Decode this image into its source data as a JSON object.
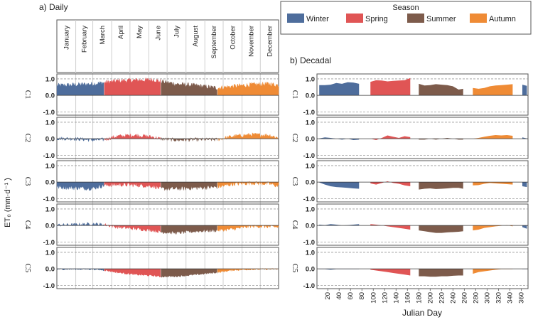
{
  "figure": {
    "ylabel": "ET₀ (mm·d⁻¹ )",
    "legend": {
      "title": "Season",
      "placement": "top-right",
      "items": [
        {
          "name": "Winter",
          "color": "#4e6d9c"
        },
        {
          "name": "Spring",
          "color": "#e05555"
        },
        {
          "name": "Summer",
          "color": "#7d5b4b"
        },
        {
          "name": "Autumn",
          "color": "#ef8b35"
        }
      ]
    }
  },
  "chart_data": [
    {
      "type": "area",
      "title": "a)  Daily",
      "months": [
        "January",
        "February",
        "March",
        "April",
        "May",
        "June",
        "July",
        "August",
        "September",
        "October",
        "November",
        "December"
      ],
      "rows": [
        "C1",
        "C2",
        "C3",
        "C4",
        "C5"
      ],
      "ytick_labels": [
        "1.0",
        "0.0",
        "-1.0"
      ],
      "yticks": [
        1.0,
        0.0,
        -1.0
      ],
      "ylim": [
        -1.2,
        1.3
      ],
      "xlim": [
        1,
        365
      ],
      "season_ranges": {
        "Winter": [
          1,
          78
        ],
        "Spring": [
          79,
          171
        ],
        "Summer": [
          172,
          264
        ],
        "Autumn": [
          265,
          365
        ]
      },
      "profiles_day": [
        1,
        30,
        60,
        79,
        100,
        130,
        160,
        171,
        200,
        230,
        264,
        290,
        320,
        350,
        365
      ],
      "profiles": {
        "C1": [
          0.6,
          0.65,
          0.7,
          0.78,
          0.88,
          0.92,
          0.95,
          0.85,
          0.68,
          0.6,
          0.45,
          0.55,
          0.65,
          0.7,
          0.62
        ],
        "C2": [
          0.02,
          0.0,
          -0.08,
          -0.05,
          0.15,
          0.22,
          0.1,
          0.0,
          -0.08,
          -0.05,
          -0.05,
          0.15,
          0.25,
          0.22,
          0.05
        ],
        "C3": [
          -0.3,
          -0.35,
          -0.38,
          -0.2,
          -0.15,
          -0.18,
          -0.25,
          -0.4,
          -0.4,
          -0.35,
          -0.3,
          -0.12,
          -0.05,
          -0.1,
          -0.25
        ],
        "C4": [
          0.02,
          0.05,
          0.1,
          0.05,
          -0.1,
          -0.2,
          -0.3,
          -0.4,
          -0.45,
          -0.35,
          -0.3,
          -0.22,
          -0.05,
          -0.08,
          -0.1
        ],
        "C5": [
          -0.02,
          -0.02,
          -0.02,
          -0.08,
          -0.22,
          -0.35,
          -0.42,
          -0.48,
          -0.45,
          -0.35,
          -0.22,
          -0.08,
          -0.03,
          -0.02,
          -0.02
        ]
      },
      "noise": {
        "C1": 0.14,
        "C2": 0.12,
        "C3": 0.13,
        "C4": 0.1,
        "C5": 0.05
      }
    },
    {
      "type": "bar",
      "title": "b)  Decadal",
      "xlabel": "Julian Day",
      "xtick_labels": [
        "20",
        "40",
        "60",
        "80",
        "100",
        "120",
        "140",
        "160",
        "180",
        "200",
        "220",
        "240",
        "260",
        "280",
        "300",
        "320",
        "340",
        "360"
      ],
      "xticks": [
        20,
        40,
        60,
        80,
        100,
        120,
        140,
        160,
        180,
        200,
        220,
        240,
        260,
        280,
        300,
        320,
        340,
        360
      ],
      "ytick_labels": [
        "1.0",
        "0.0",
        "-1.0"
      ],
      "yticks": [
        1.0,
        0.0,
        -1.0
      ],
      "ylim": [
        -1.2,
        1.3
      ],
      "xlim": [
        1,
        372
      ],
      "segments": [
        {
          "season": "Winter",
          "x": [
            5,
            15,
            25,
            35,
            45,
            55,
            65,
            75
          ]
        },
        {
          "season": "Spring",
          "x": [
            95,
            105,
            115,
            125,
            135,
            145,
            155,
            165
          ]
        },
        {
          "season": "Summer",
          "x": [
            180,
            190,
            200,
            210,
            220,
            230,
            240,
            250,
            258
          ]
        },
        {
          "season": "Autumn",
          "x": [
            275,
            285,
            295,
            305,
            315,
            325,
            335,
            345
          ]
        },
        {
          "season": "Winter",
          "x": [
            362,
            370
          ]
        }
      ],
      "rows": {
        "C1": [
          [
            0.62,
            0.62,
            0.65,
            0.75,
            0.7,
            0.8,
            0.78,
            0.7
          ],
          [
            0.82,
            0.92,
            0.9,
            0.85,
            0.88,
            0.9,
            0.92,
            1.05
          ],
          [
            0.7,
            0.6,
            0.62,
            0.68,
            0.65,
            0.62,
            0.55,
            0.35,
            0.4
          ],
          [
            0.45,
            0.4,
            0.45,
            0.55,
            0.6,
            0.62,
            0.65,
            0.68
          ],
          [
            0.65,
            0.58
          ]
        ],
        "C2": [
          [
            0.02,
            0.08,
            0.05,
            0.0,
            -0.05,
            0.0,
            -0.08,
            -0.05
          ],
          [
            0.0,
            -0.08,
            0.05,
            0.2,
            0.12,
            0.05,
            0.15,
            0.1
          ],
          [
            -0.05,
            -0.05,
            0.0,
            -0.05,
            0.0,
            0.05,
            0.0,
            -0.05,
            -0.05
          ],
          [
            0.0,
            0.05,
            0.12,
            0.18,
            0.22,
            0.2,
            0.22,
            0.18
          ],
          [
            0.08,
            0.02
          ]
        ],
        "C3": [
          [
            -0.02,
            -0.15,
            -0.25,
            -0.3,
            -0.32,
            -0.35,
            -0.38,
            -0.4
          ],
          [
            -0.08,
            -0.15,
            -0.05,
            0.05,
            -0.05,
            -0.1,
            -0.2,
            -0.25
          ],
          [
            -0.45,
            -0.4,
            -0.38,
            -0.42,
            -0.4,
            -0.38,
            -0.35,
            -0.35,
            -0.4
          ],
          [
            -0.2,
            -0.18,
            -0.1,
            -0.05,
            -0.08,
            -0.1,
            -0.12,
            -0.15
          ],
          [
            -0.25,
            -0.3
          ]
        ],
        "C4": [
          [
            0.05,
            0.02,
            0.08,
            0.05,
            0.0,
            0.02,
            0.05,
            0.08
          ],
          [
            0.08,
            0.05,
            0.0,
            -0.05,
            -0.1,
            -0.15,
            -0.2,
            -0.25
          ],
          [
            -0.3,
            -0.35,
            -0.4,
            -0.45,
            -0.45,
            -0.42,
            -0.4,
            -0.38,
            -0.35
          ],
          [
            -0.3,
            -0.25,
            -0.15,
            -0.1,
            -0.05,
            -0.02,
            0.02,
            -0.05
          ],
          [
            -0.1,
            -0.2
          ]
        ],
        "C5": [
          [
            -0.02,
            -0.02,
            -0.05,
            -0.02,
            -0.02,
            -0.02,
            -0.02,
            -0.02
          ],
          [
            -0.05,
            -0.1,
            -0.15,
            -0.2,
            -0.25,
            -0.3,
            -0.35,
            -0.4
          ],
          [
            -0.45,
            -0.45,
            -0.48,
            -0.48,
            -0.45,
            -0.45,
            -0.42,
            -0.4,
            -0.4
          ],
          [
            -0.3,
            -0.2,
            -0.15,
            -0.1,
            -0.05,
            -0.02,
            -0.02,
            -0.02
          ],
          [
            -0.02,
            -0.02
          ]
        ]
      }
    }
  ]
}
